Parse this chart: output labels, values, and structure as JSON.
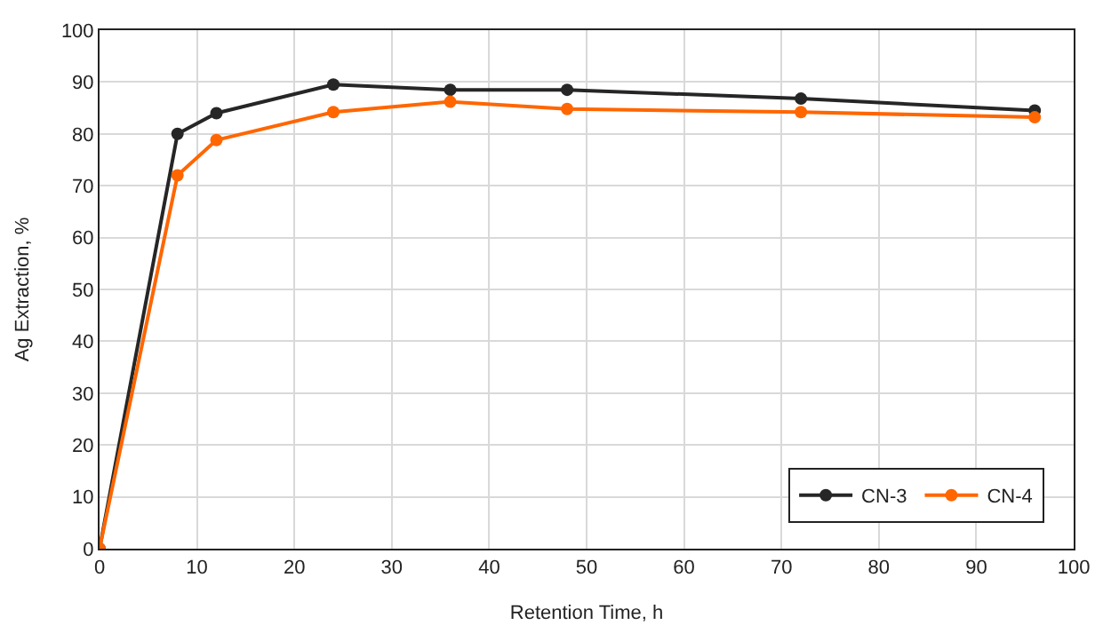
{
  "chart_data": {
    "type": "line",
    "xlabel": "Retention Time, h",
    "ylabel": "Ag Extraction, %",
    "x": [
      0,
      8,
      12,
      24,
      36,
      48,
      72,
      96
    ],
    "series": [
      {
        "name": "CN-3",
        "color": "#262626",
        "values": [
          0,
          80,
          84,
          89.5,
          88.5,
          88.5,
          86.8,
          84.5
        ]
      },
      {
        "name": "CN-4",
        "color": "#ff6600",
        "values": [
          0,
          72,
          78.8,
          84.2,
          86.2,
          84.8,
          84.2,
          83.2
        ]
      }
    ],
    "xlim": [
      0,
      100
    ],
    "xticks": [
      0,
      10,
      20,
      30,
      40,
      50,
      60,
      70,
      80,
      90,
      100
    ],
    "ylim": [
      0,
      100
    ],
    "yticks": [
      0,
      10,
      20,
      30,
      40,
      50,
      60,
      70,
      80,
      90,
      100
    ],
    "grid": true,
    "legend": "bottom right",
    "marker": "circle",
    "line_style": "solid"
  }
}
